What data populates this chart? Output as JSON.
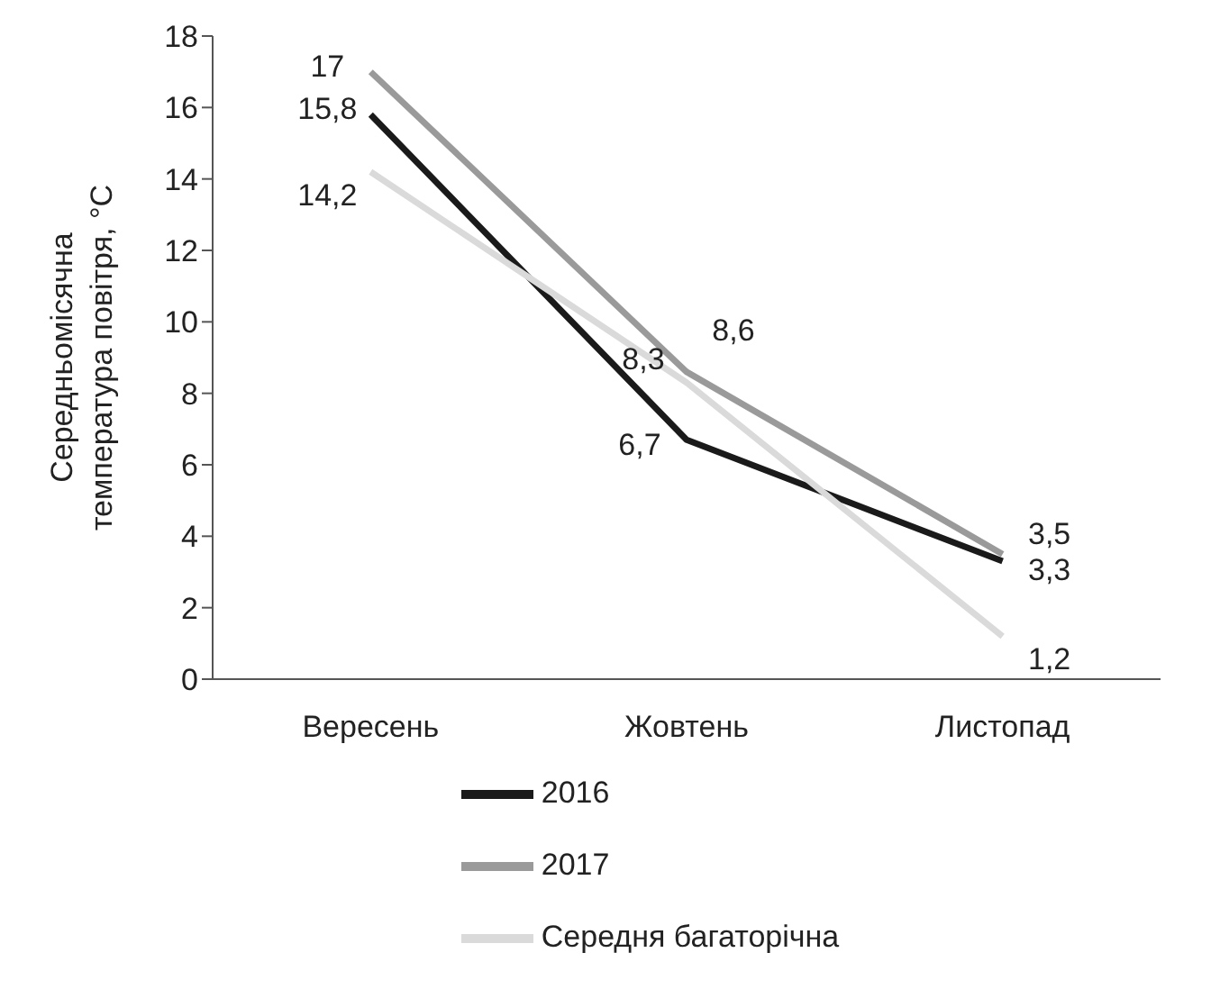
{
  "chart_data": {
    "type": "line",
    "ylabel": "Середньомісячна температура повітря, °C",
    "categories": [
      "Вересень",
      "Жовтень",
      "Листопад"
    ],
    "series": [
      {
        "name": "2016",
        "color": "#1a1a1a",
        "values": [
          15.8,
          6.7,
          3.3
        ],
        "value_labels": [
          "15,8",
          "6,7",
          "3,3"
        ]
      },
      {
        "name": "2017",
        "color": "#9a9a9a",
        "values": [
          17,
          8.6,
          3.5
        ],
        "value_labels": [
          "17",
          "8,6",
          "3,5"
        ]
      },
      {
        "name": "Середня багаторічна",
        "color": "#dadada",
        "values": [
          14.2,
          8.3,
          1.2
        ],
        "value_labels": [
          "14,2",
          "8,3",
          "1,2"
        ]
      }
    ],
    "ylim": [
      0,
      18
    ],
    "yticks": [
      0,
      2,
      4,
      6,
      8,
      10,
      12,
      14,
      16,
      18
    ],
    "grid": false,
    "legend": "bottom",
    "marker": "none",
    "line_style": "solid"
  }
}
